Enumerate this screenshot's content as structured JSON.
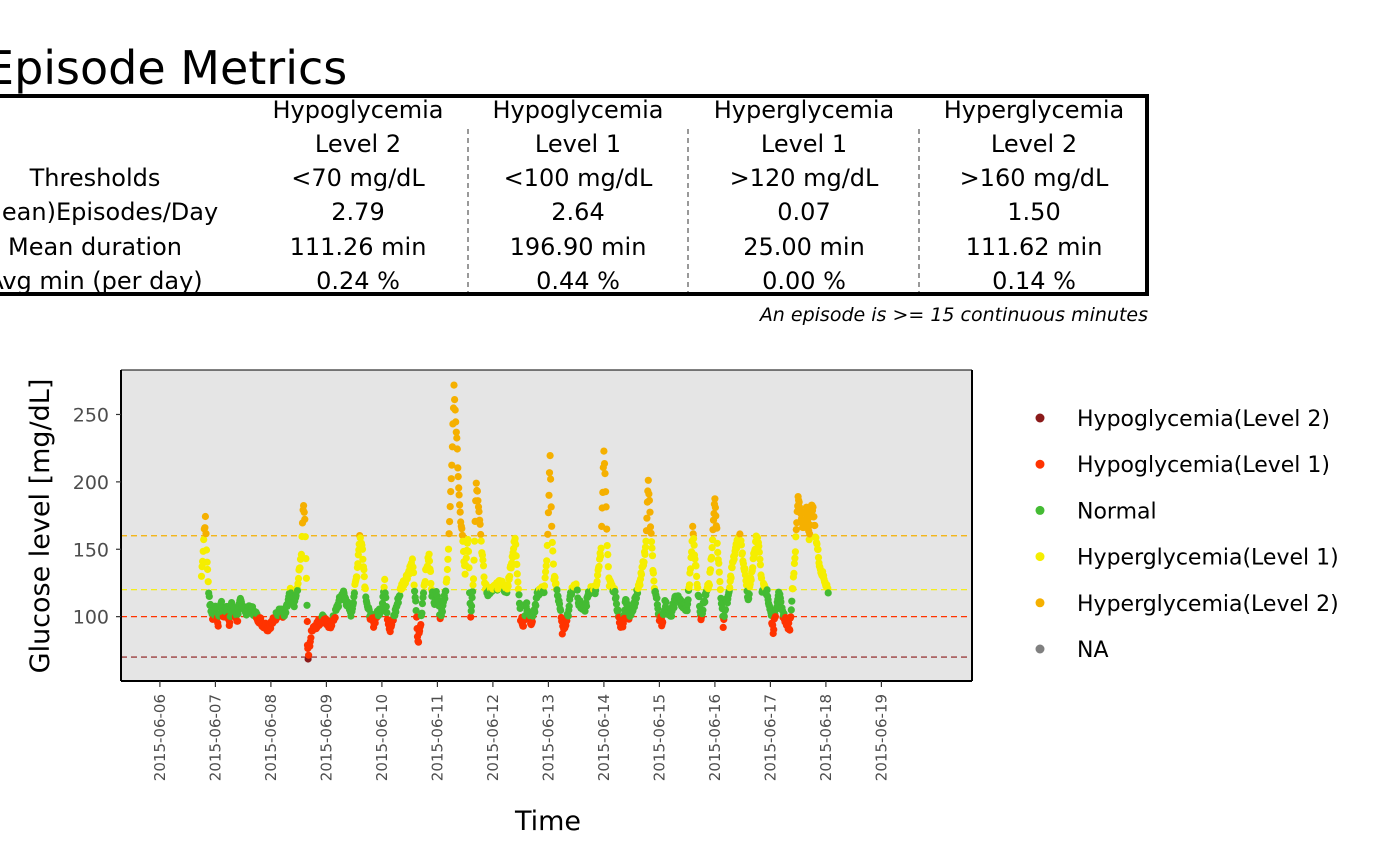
{
  "title": "Episode Metrics",
  "table": {
    "columns": [
      {
        "line1": "Hypoglycemia",
        "line2": "Level 2"
      },
      {
        "line1": "Hypoglycemia",
        "line2": "Level 1"
      },
      {
        "line1": "Hyperglycemia",
        "line2": "Level 1"
      },
      {
        "line1": "Hyperglycemia",
        "line2": "Level 2"
      }
    ],
    "rows": [
      {
        "label": "Thresholds",
        "values": [
          "<70 mg/dL",
          "<100 mg/dL",
          ">120 mg/dL",
          ">160 mg/dL"
        ]
      },
      {
        "label": "(Mean)Episodes/Day",
        "values": [
          "2.79",
          "2.64",
          "0.07",
          "1.50"
        ]
      },
      {
        "label": "Mean duration",
        "values": [
          "111.26 min",
          "196.90 min",
          "25.00 min",
          "111.62 min"
        ]
      },
      {
        "label": "Avg min (per day)",
        "values": [
          "0.24 %",
          "0.44 %",
          "0.00 %",
          "0.14 %"
        ]
      }
    ],
    "footnote": "An episode is >= 15 continuous minutes"
  },
  "colors": {
    "hypo2": "#8B1A1A",
    "hypo1": "#FF3300",
    "normal": "#44BB33",
    "hyper1": "#F5EE00",
    "hyper2": "#F5B000",
    "na": "#808080",
    "panel": "#E5E5E5"
  },
  "chart_data": {
    "type": "scatter",
    "xlabel": "Time",
    "ylabel": "Glucose level [mg/dL]",
    "ylim": [
      53,
      283
    ],
    "xlim": [
      "2015-06-05 05:00",
      "2015-06-20 11:00"
    ],
    "y_ticks": [
      100,
      150,
      200,
      250
    ],
    "x_ticks": [
      "2015-06-06",
      "2015-06-07",
      "2015-06-08",
      "2015-06-09",
      "2015-06-10",
      "2015-06-11",
      "2015-06-12",
      "2015-06-13",
      "2015-06-14",
      "2015-06-15",
      "2015-06-16",
      "2015-06-17",
      "2015-06-18",
      "2015-06-19"
    ],
    "reference_lines": [
      {
        "y": 70,
        "series": "hypo2"
      },
      {
        "y": 100,
        "series": "hypo1"
      },
      {
        "y": 120,
        "series": "hyper1"
      },
      {
        "y": 160,
        "series": "hyper2"
      }
    ],
    "legend_position": "right",
    "series": [
      {
        "key": "hypo2",
        "name": "Hypoglycemia(Level 2)"
      },
      {
        "key": "hypo1",
        "name": "Hypoglycemia(Level 1)"
      },
      {
        "key": "normal",
        "name": "Normal"
      },
      {
        "key": "hyper1",
        "name": "Hyperglycemia(Level 1)"
      },
      {
        "key": "hyper2",
        "name": "Hyperglycemia(Level 2)"
      },
      {
        "key": "na",
        "name": "NA"
      }
    ],
    "glucose_path_day_fraction": [
      [
        0.75,
        130
      ],
      [
        0.78,
        150
      ],
      [
        0.8,
        165
      ],
      [
        0.82,
        172
      ],
      [
        0.84,
        150
      ],
      [
        0.87,
        125
      ],
      [
        0.9,
        110
      ],
      [
        0.95,
        100
      ],
      [
        1.0,
        105
      ],
      [
        1.05,
        95
      ],
      [
        1.1,
        112
      ],
      [
        1.15,
        100
      ],
      [
        1.2,
        108
      ],
      [
        1.25,
        96
      ],
      [
        1.3,
        110
      ],
      [
        1.35,
        102
      ],
      [
        1.4,
        98
      ],
      [
        1.45,
        112
      ],
      [
        1.55,
        104
      ],
      [
        1.65,
        106
      ],
      [
        1.75,
        100
      ],
      [
        1.85,
        95
      ],
      [
        1.95,
        92
      ],
      [
        2.05,
        97
      ],
      [
        2.15,
        105
      ],
      [
        2.25,
        100
      ],
      [
        2.35,
        118
      ],
      [
        2.42,
        108
      ],
      [
        2.48,
        122
      ],
      [
        2.55,
        148
      ],
      [
        2.58,
        182
      ],
      [
        2.61,
        175
      ],
      [
        2.63,
        145
      ],
      [
        2.65,
        110
      ],
      [
        2.66,
        80
      ],
      [
        2.67,
        68
      ],
      [
        2.7,
        80
      ],
      [
        2.75,
        92
      ],
      [
        2.85,
        95
      ],
      [
        2.95,
        100
      ],
      [
        3.05,
        92
      ],
      [
        3.15,
        100
      ],
      [
        3.2,
        108
      ],
      [
        3.3,
        118
      ],
      [
        3.35,
        112
      ],
      [
        3.45,
        102
      ],
      [
        3.55,
        132
      ],
      [
        3.6,
        160
      ],
      [
        3.65,
        150
      ],
      [
        3.7,
        120
      ],
      [
        3.75,
        105
      ],
      [
        3.8,
        100
      ],
      [
        3.85,
        95
      ],
      [
        3.9,
        100
      ],
      [
        4.0,
        108
      ],
      [
        4.05,
        125
      ],
      [
        4.1,
        100
      ],
      [
        4.15,
        90
      ],
      [
        4.25,
        105
      ],
      [
        4.35,
        122
      ],
      [
        4.45,
        130
      ],
      [
        4.55,
        140
      ],
      [
        4.6,
        115
      ],
      [
        4.65,
        80
      ],
      [
        4.7,
        95
      ],
      [
        4.75,
        120
      ],
      [
        4.8,
        135
      ],
      [
        4.85,
        145
      ],
      [
        4.9,
        118
      ],
      [
        4.95,
        112
      ],
      [
        5.0,
        118
      ],
      [
        5.05,
        100
      ],
      [
        5.1,
        108
      ],
      [
        5.15,
        118
      ],
      [
        5.2,
        150
      ],
      [
        5.25,
        200
      ],
      [
        5.3,
        270
      ],
      [
        5.35,
        230
      ],
      [
        5.4,
        180
      ],
      [
        5.45,
        160
      ],
      [
        5.5,
        130
      ],
      [
        5.55,
        160
      ],
      [
        5.58,
        120
      ],
      [
        5.6,
        100
      ],
      [
        5.65,
        130
      ],
      [
        5.7,
        200
      ],
      [
        5.75,
        180
      ],
      [
        5.8,
        150
      ],
      [
        5.85,
        125
      ],
      [
        5.9,
        118
      ],
      [
        6.0,
        120
      ],
      [
        6.15,
        125
      ],
      [
        6.25,
        118
      ],
      [
        6.4,
        158
      ],
      [
        6.45,
        128
      ],
      [
        6.5,
        100
      ],
      [
        6.55,
        92
      ],
      [
        6.6,
        110
      ],
      [
        6.65,
        100
      ],
      [
        6.7,
        95
      ],
      [
        6.8,
        115
      ],
      [
        6.85,
        120
      ],
      [
        6.92,
        120
      ],
      [
        6.97,
        140
      ],
      [
        7.0,
        175
      ],
      [
        7.03,
        220
      ],
      [
        7.06,
        165
      ],
      [
        7.1,
        130
      ],
      [
        7.2,
        110
      ],
      [
        7.25,
        90
      ],
      [
        7.35,
        100
      ],
      [
        7.4,
        118
      ],
      [
        7.5,
        125
      ],
      [
        7.55,
        110
      ],
      [
        7.65,
        105
      ],
      [
        7.75,
        120
      ],
      [
        7.85,
        120
      ],
      [
        7.95,
        150
      ],
      [
        8.0,
        225
      ],
      [
        8.03,
        195
      ],
      [
        8.06,
        150
      ],
      [
        8.1,
        125
      ],
      [
        8.2,
        118
      ],
      [
        8.3,
        90
      ],
      [
        8.35,
        95
      ],
      [
        8.4,
        115
      ],
      [
        8.45,
        100
      ],
      [
        8.55,
        110
      ],
      [
        8.65,
        125
      ],
      [
        8.75,
        150
      ],
      [
        8.8,
        200
      ],
      [
        8.85,
        160
      ],
      [
        8.9,
        125
      ],
      [
        9.0,
        100
      ],
      [
        9.05,
        95
      ],
      [
        9.1,
        110
      ],
      [
        9.2,
        100
      ],
      [
        9.3,
        115
      ],
      [
        9.4,
        110
      ],
      [
        9.5,
        105
      ],
      [
        9.55,
        130
      ],
      [
        9.6,
        165
      ],
      [
        9.65,
        140
      ],
      [
        9.7,
        118
      ],
      [
        9.75,
        100
      ],
      [
        9.8,
        110
      ],
      [
        9.9,
        125
      ],
      [
        9.95,
        150
      ],
      [
        10.0,
        190
      ],
      [
        10.05,
        150
      ],
      [
        10.1,
        120
      ],
      [
        10.15,
        95
      ],
      [
        10.2,
        110
      ],
      [
        10.25,
        115
      ],
      [
        10.3,
        135
      ],
      [
        10.4,
        155
      ],
      [
        10.45,
        160
      ],
      [
        10.55,
        130
      ],
      [
        10.6,
        110
      ],
      [
        10.7,
        145
      ],
      [
        10.75,
        160
      ],
      [
        10.8,
        150
      ],
      [
        10.85,
        120
      ],
      [
        10.9,
        125
      ],
      [
        10.95,
        115
      ],
      [
        11.0,
        105
      ],
      [
        11.05,
        90
      ],
      [
        11.1,
        105
      ],
      [
        11.15,
        120
      ],
      [
        11.2,
        105
      ],
      [
        11.3,
        95
      ],
      [
        11.35,
        92
      ],
      [
        11.45,
        150
      ],
      [
        11.5,
        190
      ],
      [
        11.55,
        175
      ],
      [
        11.6,
        165
      ],
      [
        11.65,
        180
      ],
      [
        11.7,
        160
      ],
      [
        11.75,
        185
      ],
      [
        11.8,
        165
      ],
      [
        11.85,
        150
      ],
      [
        11.9,
        135
      ],
      [
        11.95,
        130
      ],
      [
        12.0,
        125
      ],
      [
        12.05,
        118
      ]
    ]
  }
}
